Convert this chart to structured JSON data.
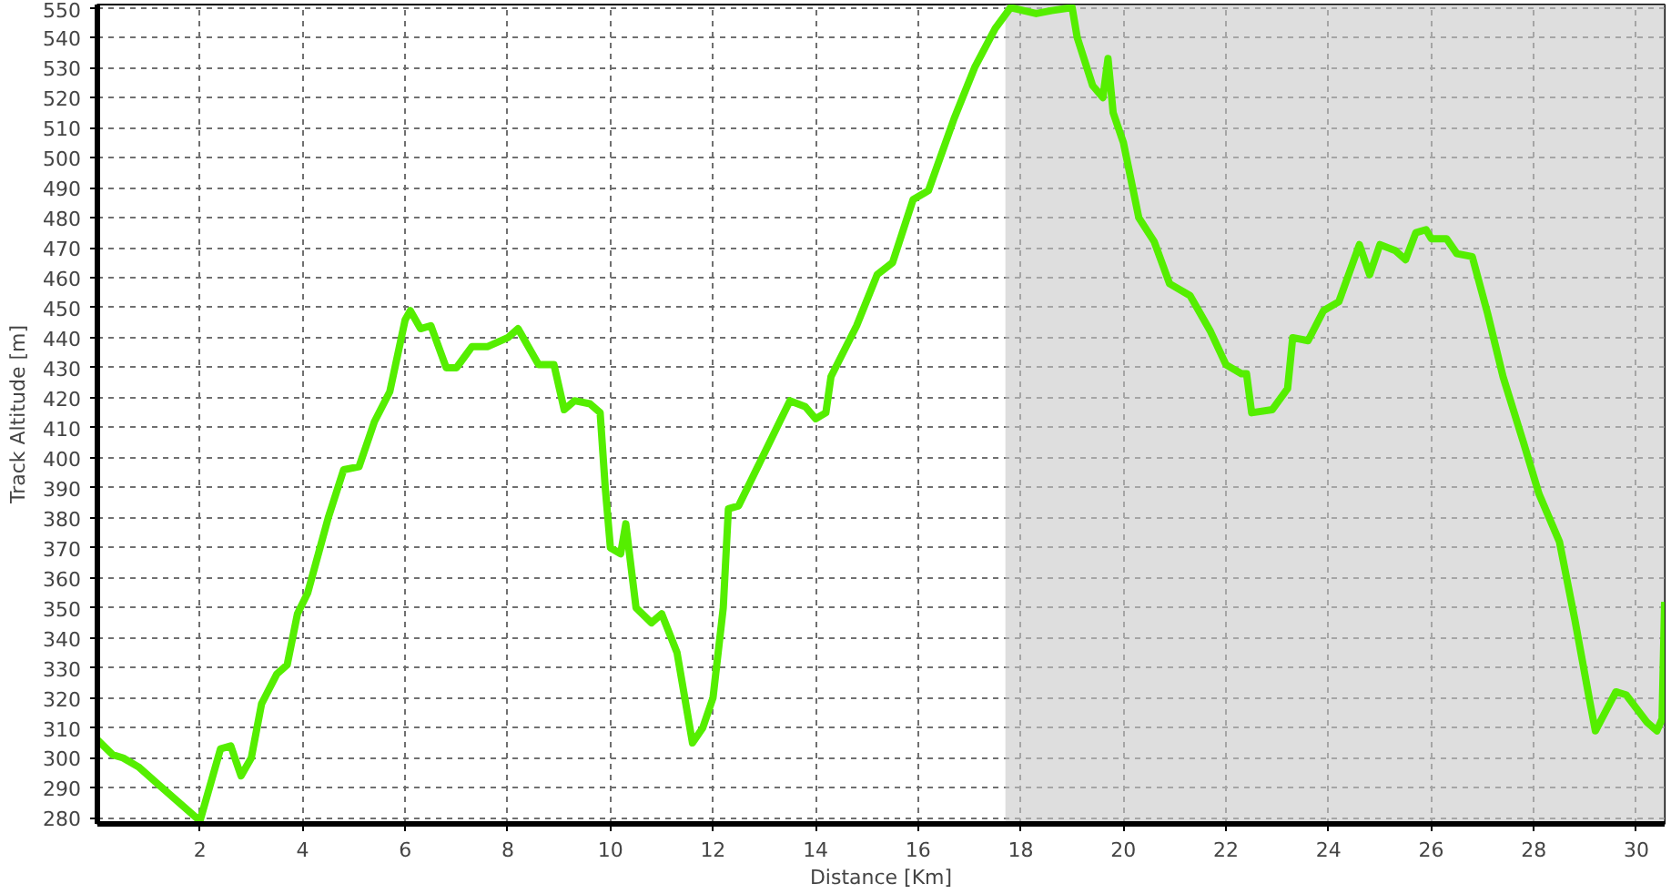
{
  "chart_data": {
    "type": "line",
    "xlabel": "Distance [Km]",
    "ylabel": "Track Altitude [m]",
    "xlim": [
      0,
      30.55
    ],
    "ylim": [
      278,
      551
    ],
    "xticks": [
      2,
      4,
      6,
      8,
      10,
      12,
      14,
      16,
      18,
      20,
      22,
      24,
      26,
      28,
      30
    ],
    "yticks": [
      280,
      290,
      300,
      310,
      320,
      330,
      340,
      350,
      360,
      370,
      380,
      390,
      400,
      410,
      420,
      430,
      440,
      450,
      460,
      470,
      480,
      490,
      500,
      510,
      520,
      530,
      540,
      550
    ],
    "grid": true,
    "line_style": "solid",
    "bands": [
      {
        "axis": "x",
        "from": 17.7,
        "to": 30.55,
        "color": "#c8c8c8"
      }
    ],
    "series": [
      {
        "color": "#55ee00",
        "x": [
          0,
          0.3,
          0.5,
          0.8,
          1.2,
          2.0,
          2.4,
          2.6,
          2.8,
          3.0,
          3.2,
          3.5,
          3.7,
          3.9,
          4.1,
          4.5,
          4.8,
          5.1,
          5.4,
          5.7,
          6.0,
          6.1,
          6.3,
          6.5,
          6.8,
          7.0,
          7.3,
          7.6,
          8.0,
          8.2,
          8.6,
          8.9,
          9.1,
          9.3,
          9.6,
          9.8,
          9.9,
          10.0,
          10.2,
          10.3,
          10.5,
          10.8,
          11.0,
          11.3,
          11.6,
          11.8,
          12.0,
          12.2,
          12.3,
          12.5,
          12.9,
          13.3,
          13.5,
          13.8,
          14.0,
          14.2,
          14.3,
          14.8,
          15.2,
          15.5,
          15.9,
          16.2,
          16.7,
          17.1,
          17.5,
          17.8,
          18.3,
          18.6,
          19.0,
          19.1,
          19.4,
          19.6,
          19.7,
          19.8,
          20.0,
          20.3,
          20.6,
          20.9,
          21.3,
          21.7,
          22.0,
          22.3,
          22.4,
          22.5,
          22.9,
          23.2,
          23.3,
          23.6,
          23.9,
          24.2,
          24.6,
          24.8,
          25.0,
          25.3,
          25.5,
          25.7,
          25.9,
          26.0,
          26.3,
          26.5,
          26.8,
          27.1,
          27.4,
          27.8,
          28.1,
          28.5,
          28.8,
          29.1,
          29.2,
          29.6,
          29.8,
          30.2,
          30.4,
          30.5,
          30.55
        ],
        "values": [
          306,
          301,
          300,
          297,
          291,
          279,
          303,
          304,
          294,
          300,
          318,
          328,
          331,
          348,
          355,
          380,
          396,
          397,
          412,
          422,
          446,
          449,
          443,
          444,
          430,
          430,
          437,
          437,
          440,
          443,
          431,
          431,
          416,
          419,
          418,
          415,
          390,
          370,
          368,
          378,
          350,
          345,
          348,
          335,
          305,
          310,
          320,
          350,
          383,
          384,
          398,
          412,
          419,
          417,
          413,
          415,
          427,
          444,
          461,
          465,
          486,
          489,
          513,
          530,
          543,
          550,
          548,
          549,
          550,
          540,
          524,
          520,
          533,
          515,
          505,
          480,
          472,
          458,
          454,
          442,
          431,
          428,
          428,
          415,
          416,
          423,
          440,
          439,
          449,
          452,
          471,
          461,
          471,
          469,
          466,
          475,
          476,
          473,
          473,
          468,
          467,
          448,
          427,
          405,
          388,
          372,
          346,
          318,
          309,
          322,
          321,
          312,
          309,
          313,
          352
        ]
      }
    ]
  }
}
